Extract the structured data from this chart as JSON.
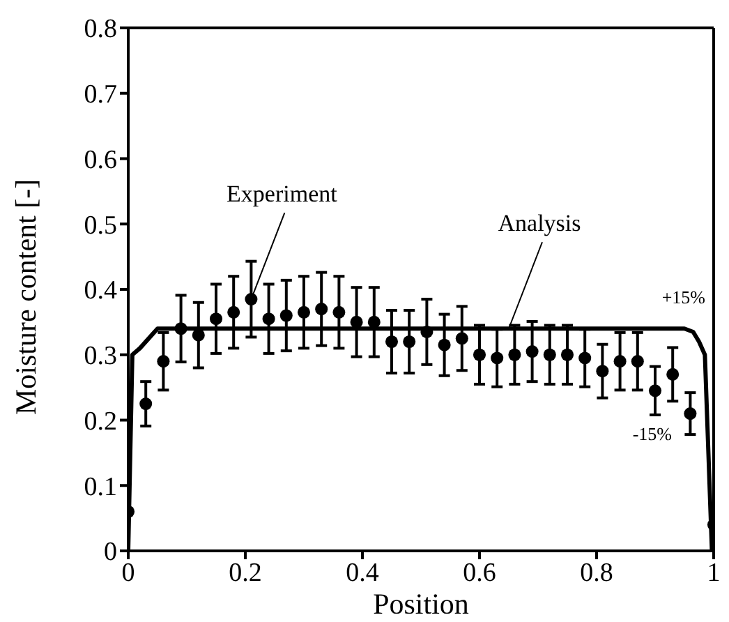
{
  "chart_data": {
    "type": "scatter",
    "xlabel": "Position",
    "ylabel": "Moisture content [-]",
    "xlim": [
      0,
      1
    ],
    "ylim": [
      0,
      0.8
    ],
    "xticks": [
      0,
      0.2,
      0.4,
      0.6,
      0.8,
      1
    ],
    "yticks": [
      0,
      0.1,
      0.2,
      0.3,
      0.4,
      0.5,
      0.6,
      0.7,
      0.8
    ],
    "series": [
      {
        "marker": "circle",
        "color": "#000000",
        "x": [
          0,
          0.03,
          0.06,
          0.09,
          0.12,
          0.15,
          0.18,
          0.21,
          0.24,
          0.27,
          0.3,
          0.33,
          0.36,
          0.39,
          0.42,
          0.45,
          0.48,
          0.51,
          0.54,
          0.57,
          0.6,
          0.63,
          0.66,
          0.69,
          0.72,
          0.75,
          0.78,
          0.81,
          0.84,
          0.87,
          0.9,
          0.93,
          0.96,
          1
        ],
        "values": [
          0.06,
          0.225,
          0.29,
          0.34,
          0.33,
          0.355,
          0.365,
          0.385,
          0.355,
          0.36,
          0.365,
          0.37,
          0.365,
          0.35,
          0.35,
          0.32,
          0.32,
          0.335,
          0.315,
          0.325,
          0.3,
          0.295,
          0.3,
          0.305,
          0.3,
          0.3,
          0.295,
          0.275,
          0.29,
          0.29,
          0.245,
          0.27,
          0.21,
          0.04
        ],
        "errors": [
          null,
          0.034,
          0.044,
          0.051,
          0.05,
          0.053,
          0.055,
          0.058,
          0.053,
          0.054,
          0.055,
          0.056,
          0.055,
          0.053,
          0.053,
          0.048,
          0.048,
          0.05,
          0.047,
          0.049,
          0.045,
          0.044,
          0.045,
          0.046,
          0.045,
          0.045,
          0.044,
          0.041,
          0.044,
          0.044,
          0.037,
          0.041,
          0.032,
          null
        ]
      },
      {
        "type": "line",
        "marker": "none",
        "line_style": "solid",
        "color": "#000000",
        "x": [
          0,
          0.007,
          0.02,
          0.04,
          0.05,
          0.95,
          0.965,
          0.975,
          0.985,
          0.997
        ],
        "values": [
          0,
          0.3,
          0.31,
          0.33,
          0.34,
          0.34,
          0.335,
          0.32,
          0.3,
          0
        ]
      }
    ],
    "annotations": [
      {
        "text": "Experiment",
        "x": 0.21,
        "y": 0.385
      },
      {
        "text": "Analysis",
        "x": 0.65,
        "y": 0.34
      },
      "+15%",
      "-15%"
    ]
  }
}
